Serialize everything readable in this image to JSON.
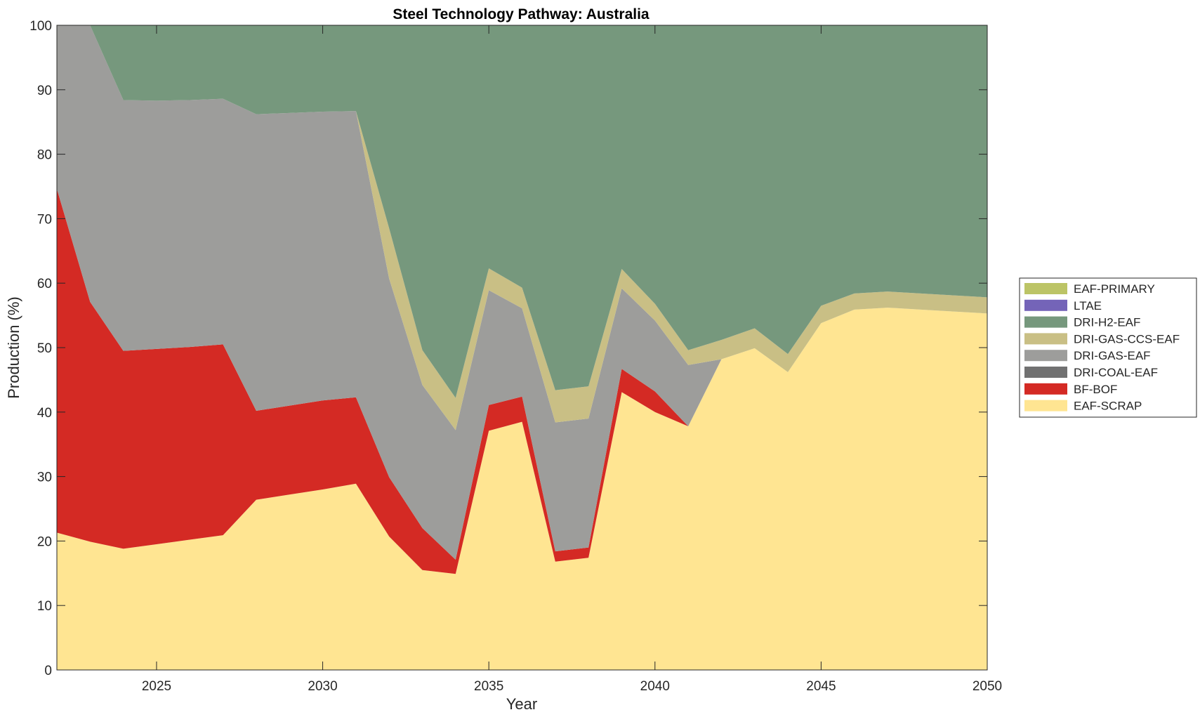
{
  "chart_data": {
    "type": "area",
    "stacked": true,
    "title": "Steel Technology Pathway: Australia",
    "xlabel": "Year",
    "ylabel": "Production (%)",
    "xlim": [
      2022,
      2050
    ],
    "ylim": [
      0,
      100
    ],
    "xticks": [
      2025,
      2030,
      2035,
      2040,
      2045,
      2050
    ],
    "yticks": [
      0,
      10,
      20,
      30,
      40,
      50,
      60,
      70,
      80,
      90,
      100
    ],
    "grid": false,
    "legend_position": "right",
    "x": [
      2022,
      2023,
      2024,
      2025,
      2026,
      2027,
      2028,
      2029,
      2030,
      2031,
      2032,
      2033,
      2034,
      2035,
      2036,
      2037,
      2038,
      2039,
      2040,
      2041,
      2042,
      2043,
      2044,
      2045,
      2046,
      2047,
      2048,
      2049,
      2050
    ],
    "series": [
      {
        "name": "EAF-SCRAP",
        "color": "#ffe592",
        "values": [
          21.3,
          19.9,
          18.8,
          19.5,
          20.2,
          20.9,
          26.4,
          27.2,
          28.0,
          28.9,
          20.7,
          15.5,
          14.9,
          37.1,
          38.5,
          16.8,
          17.4,
          43.1,
          40.0,
          37.8,
          48.2,
          49.9,
          46.2,
          53.8,
          55.9,
          56.2,
          55.9,
          55.6,
          55.3
        ]
      },
      {
        "name": "BF-BOF",
        "color": "#d42a24",
        "values": [
          53.3,
          37.2,
          30.7,
          30.3,
          29.9,
          29.6,
          13.8,
          13.8,
          13.8,
          13.4,
          9.2,
          6.5,
          2.2,
          4.0,
          3.9,
          1.6,
          1.6,
          3.6,
          3.2,
          0.0,
          0.0,
          0.0,
          0.0,
          0.0,
          0.0,
          0.0,
          0.0,
          0.0,
          0.0
        ]
      },
      {
        "name": "DRI-COAL-EAF",
        "color": "#717171",
        "values": [
          0,
          0,
          0,
          0,
          0,
          0,
          0,
          0,
          0,
          0,
          0,
          0,
          0,
          0,
          0,
          0,
          0,
          0,
          0,
          0,
          0,
          0,
          0,
          0,
          0,
          0,
          0,
          0,
          0
        ]
      },
      {
        "name": "DRI-GAS-EAF",
        "color": "#9d9d9b",
        "values": [
          25.4,
          42.9,
          38.9,
          38.5,
          38.3,
          38.1,
          46.0,
          45.4,
          44.8,
          44.4,
          30.8,
          22.2,
          20.1,
          17.8,
          13.7,
          20.0,
          20.0,
          12.5,
          11.0,
          9.5,
          0.0,
          0.0,
          0.0,
          0.0,
          0.0,
          0.0,
          0.0,
          0.0,
          0.0
        ]
      },
      {
        "name": "DRI-GAS-CCS-EAF",
        "color": "#c9bf85",
        "values": [
          0.0,
          0.0,
          0.0,
          0.0,
          0.0,
          0.0,
          0.0,
          0.0,
          0.0,
          0.0,
          7.8,
          5.4,
          5.0,
          3.4,
          3.2,
          5.0,
          5.0,
          3.0,
          2.6,
          2.3,
          3.0,
          3.1,
          2.8,
          2.7,
          2.5,
          2.5,
          2.5,
          2.5,
          2.5
        ]
      },
      {
        "name": "DRI-H2-EAF",
        "color": "#76987d",
        "values": [
          0.0,
          0.0,
          11.6,
          11.7,
          11.6,
          11.4,
          13.8,
          13.6,
          13.4,
          13.3,
          31.5,
          50.4,
          57.8,
          37.7,
          40.7,
          56.6,
          56.0,
          37.8,
          43.2,
          50.4,
          48.8,
          47.0,
          51.0,
          43.5,
          41.6,
          41.3,
          41.6,
          41.9,
          42.2
        ]
      },
      {
        "name": "LTAE",
        "color": "#7464b8",
        "values": [
          0,
          0,
          0,
          0,
          0,
          0,
          0,
          0,
          0,
          0,
          0,
          0,
          0,
          0,
          0,
          0,
          0,
          0,
          0,
          0,
          0,
          0,
          0,
          0,
          0,
          0,
          0,
          0,
          0
        ]
      },
      {
        "name": "EAF-PRIMARY",
        "color": "#bcc466",
        "values": [
          0,
          0,
          0,
          0,
          0,
          0,
          0,
          0,
          0,
          0,
          0,
          0,
          0,
          0,
          0,
          0,
          0,
          0,
          0,
          0,
          0,
          0,
          0,
          0,
          0,
          0,
          0,
          0,
          0
        ]
      }
    ],
    "legend_order": [
      "EAF-PRIMARY",
      "LTAE",
      "DRI-H2-EAF",
      "DRI-GAS-CCS-EAF",
      "DRI-GAS-EAF",
      "DRI-COAL-EAF",
      "BF-BOF",
      "EAF-SCRAP"
    ]
  }
}
